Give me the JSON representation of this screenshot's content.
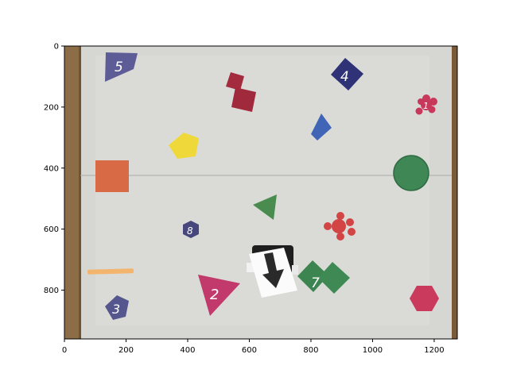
{
  "figure": {
    "x_ticks": [
      "0",
      "200",
      "400",
      "600",
      "800",
      "1000",
      "1200"
    ],
    "y_ticks": [
      "0",
      "200",
      "400",
      "600",
      "800"
    ],
    "xlim": [
      0,
      1275
    ],
    "ylim": [
      960,
      0
    ]
  },
  "shape_numbers": {
    "one": "1",
    "two": "2",
    "three": "3",
    "four": "4",
    "five": "5",
    "seven": "7",
    "eight": "8"
  },
  "colors": {
    "floor": "#d5d6d2",
    "wood_edge": "#8b6a45",
    "purple": "#5b5a93",
    "navy": "#2f3175",
    "crimson": "#a3283b",
    "blue": "#3e63b5",
    "yellow": "#efd939",
    "orange": "#d96a45",
    "green": "#3f8a55",
    "red": "#d14444",
    "magenta": "#c0396a",
    "peach": "#f3b36c",
    "pink": "#c9385b"
  },
  "icons": {
    "robot": "mobile-robot-with-arrow-marker"
  }
}
